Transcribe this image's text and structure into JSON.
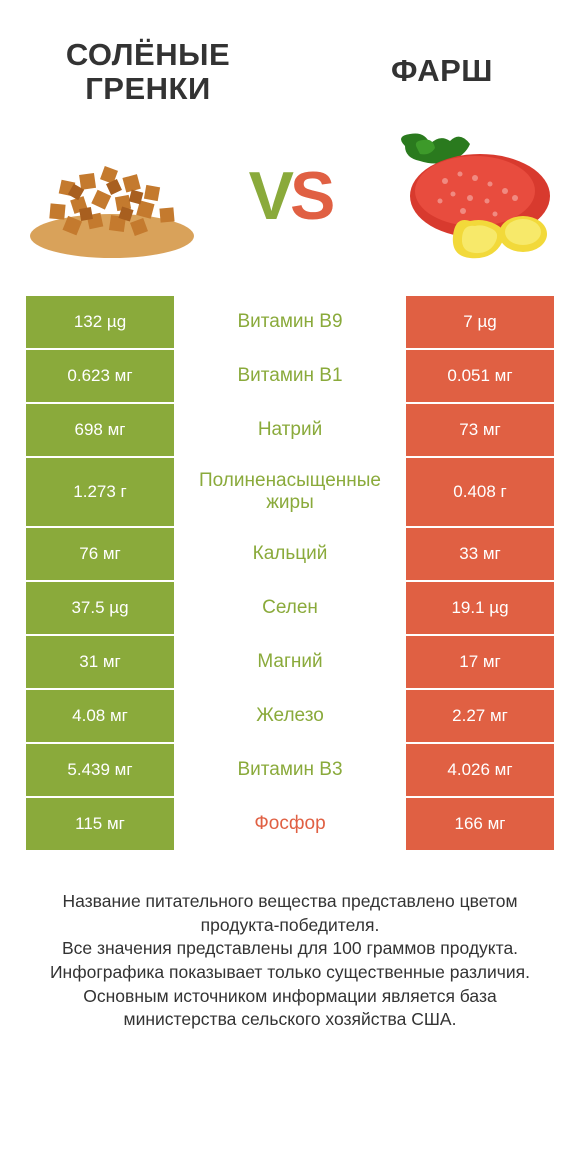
{
  "colors": {
    "green": "#8aaa3b",
    "orange": "#e06043",
    "text": "#333333",
    "bg": "#ffffff"
  },
  "header": {
    "left_title": "СОЛЁНЫЕ\nГРЕНКИ",
    "right_title": "ФАРШ",
    "vs_v": "V",
    "vs_s": "S"
  },
  "rows": [
    {
      "left": "132 µg",
      "label": "Витамин B9",
      "right": "7 µg",
      "winner": "left"
    },
    {
      "left": "0.623 мг",
      "label": "Витамин B1",
      "right": "0.051 мг",
      "winner": "left"
    },
    {
      "left": "698 мг",
      "label": "Натрий",
      "right": "73 мг",
      "winner": "left"
    },
    {
      "left": "1.273 г",
      "label": "Полиненасыщенные жиры",
      "right": "0.408 г",
      "winner": "left",
      "tall": true
    },
    {
      "left": "76 мг",
      "label": "Кальций",
      "right": "33 мг",
      "winner": "left"
    },
    {
      "left": "37.5 µg",
      "label": "Селен",
      "right": "19.1 µg",
      "winner": "left"
    },
    {
      "left": "31 мг",
      "label": "Магний",
      "right": "17 мг",
      "winner": "left"
    },
    {
      "left": "4.08 мг",
      "label": "Железо",
      "right": "2.27 мг",
      "winner": "left"
    },
    {
      "left": "5.439 мг",
      "label": "Витамин B3",
      "right": "4.026 мг",
      "winner": "left"
    },
    {
      "left": "115 мг",
      "label": "Фосфор",
      "right": "166 мг",
      "winner": "right"
    }
  ],
  "footer": "Название питательного вещества представлено цветом продукта-победителя.\nВсе значения представлены для 100 граммов продукта.\nИнфографика показывает только существенные различия.\nОсновным источником информации является база министерства сельского хозяйства США."
}
